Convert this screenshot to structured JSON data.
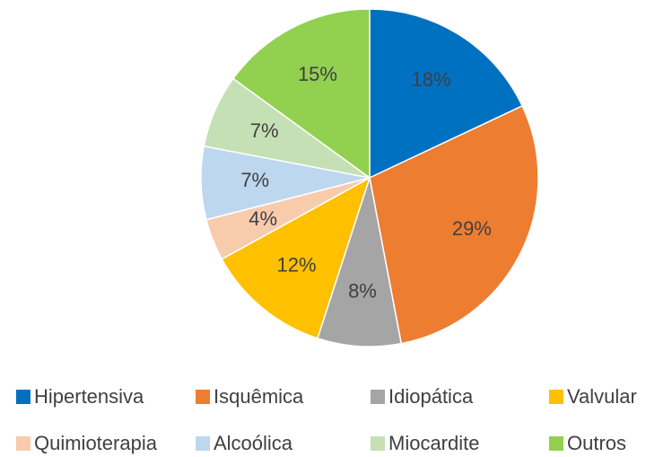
{
  "chart_data": {
    "type": "pie",
    "categories": [
      "Hipertensiva",
      "Isquêmica",
      "Idiopática",
      "Valvular",
      "Quimioterapia",
      "Alcoólica",
      "Miocardite",
      "Outros"
    ],
    "values": [
      18,
      29,
      8,
      12,
      4,
      7,
      7,
      15
    ],
    "value_labels": [
      "18%",
      "29%",
      "8%",
      "12%",
      "4%",
      "7%",
      "7%",
      "15%"
    ],
    "colors": [
      "#0070c0",
      "#ed7d31",
      "#a5a5a5",
      "#ffc000",
      "#f8cbad",
      "#bdd7ee",
      "#c5e0b4",
      "#92d050"
    ],
    "legend": "bottom"
  }
}
